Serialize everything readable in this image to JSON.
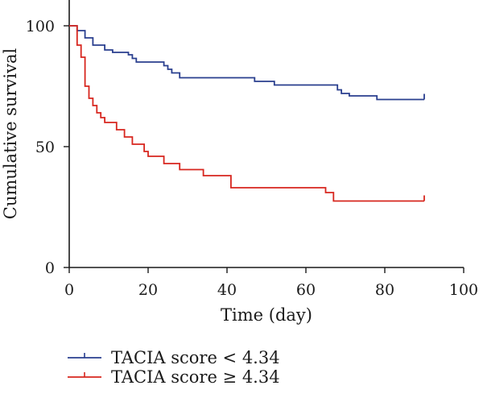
{
  "chart_data": {
    "type": "line",
    "subtype": "kaplan-meier",
    "xlabel": "Time (day)",
    "ylabel": "Cumulative survival",
    "xlim": [
      0,
      100
    ],
    "ylim": [
      0,
      100
    ],
    "xticks": [
      0,
      20,
      40,
      60,
      80,
      100
    ],
    "yticks": [
      0,
      50,
      100
    ],
    "grid": false,
    "legend_position": "bottom-left",
    "series": [
      {
        "name": "TACIA score < 4.34",
        "color": "#2a3f8f",
        "censor_mark_end": true,
        "steps": [
          [
            0,
            100
          ],
          [
            2,
            98
          ],
          [
            4,
            95
          ],
          [
            6,
            92
          ],
          [
            9,
            90
          ],
          [
            11,
            89
          ],
          [
            15,
            88
          ],
          [
            16,
            86.5
          ],
          [
            17,
            85
          ],
          [
            24,
            83.5
          ],
          [
            25,
            82
          ],
          [
            26,
            80.5
          ],
          [
            28,
            78.5
          ],
          [
            47,
            77
          ],
          [
            52,
            75.5
          ],
          [
            68,
            73.5
          ],
          [
            69,
            72
          ],
          [
            71,
            71
          ],
          [
            78,
            69.5
          ],
          [
            90,
            69.5
          ]
        ]
      },
      {
        "name": "TACIA score ≥ 4.34",
        "color": "#d7261e",
        "censor_mark_end": true,
        "steps": [
          [
            0,
            100
          ],
          [
            2,
            92
          ],
          [
            3,
            87
          ],
          [
            4,
            75
          ],
          [
            5,
            70
          ],
          [
            6,
            67
          ],
          [
            7,
            64
          ],
          [
            8,
            62
          ],
          [
            9,
            60
          ],
          [
            12,
            57
          ],
          [
            14,
            54
          ],
          [
            16,
            51
          ],
          [
            19,
            48
          ],
          [
            20,
            46
          ],
          [
            24,
            43
          ],
          [
            28,
            40.5
          ],
          [
            34,
            38
          ],
          [
            41,
            33
          ],
          [
            65,
            31
          ],
          [
            67,
            27.5
          ],
          [
            90,
            27.5
          ]
        ]
      }
    ]
  }
}
